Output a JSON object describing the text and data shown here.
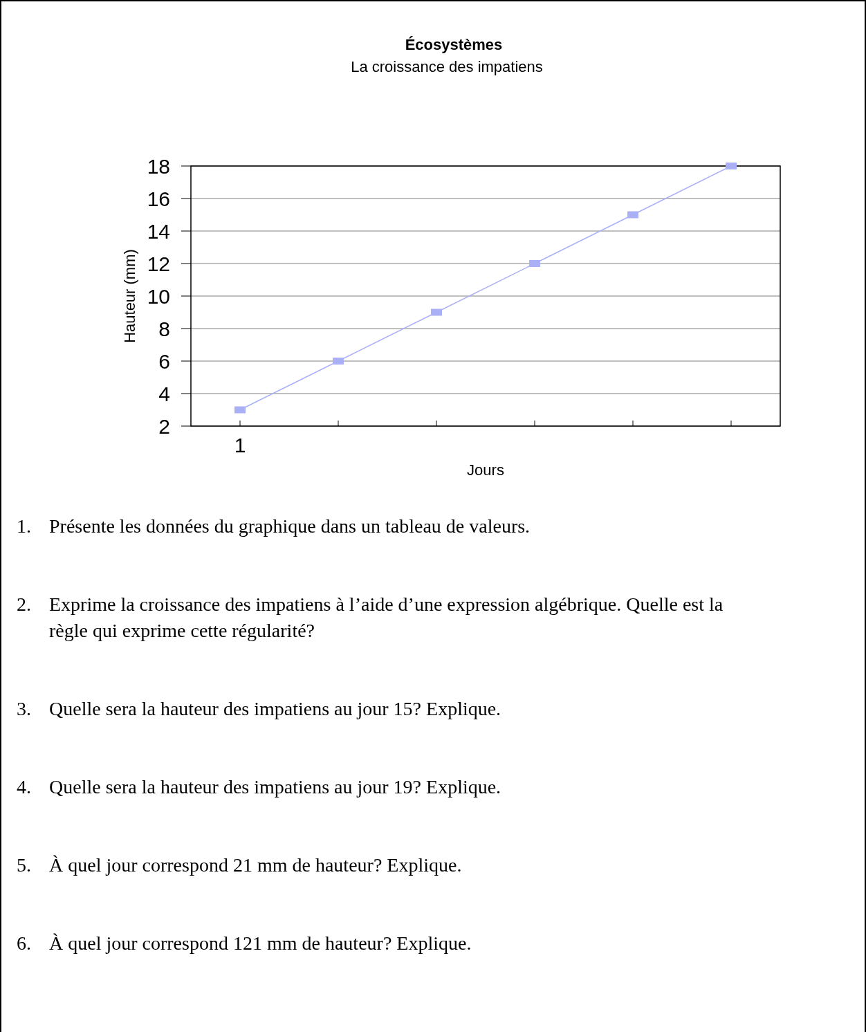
{
  "chart_data": {
    "type": "line",
    "title": "Écosystèmes",
    "subtitle": "La croissance des impatiens",
    "xlabel": "Jours",
    "ylabel": "Hauteur (mm)",
    "categories": [
      "1",
      null,
      null,
      null,
      null,
      null
    ],
    "series": [
      {
        "color": "#aab0f5",
        "values": [
          3,
          6,
          9,
          12,
          15,
          18
        ]
      }
    ],
    "ylim": [
      2,
      18
    ],
    "yticks": [
      2,
      4,
      6,
      8,
      10,
      12,
      14,
      16,
      18
    ],
    "grid": "y",
    "marker": "square",
    "line_style": "solid",
    "annotations": [
      "1. Présente les données du graphique dans un tableau de valeurs.",
      "2. Exprime la croissance des impatiens à l’aide d’une expression algébrique. Quelle est la règle qui exprime cette régularité?",
      "3. Quelle sera la hauteur des impatiens au jour 15? Explique.",
      "4. Quelle sera la hauteur des impatiens au jour 19? Explique.",
      "5. À quel jour correspond 21 mm de hauteur? Explique.",
      "6. À quel jour correspond 121 mm de hauteur? Explique."
    ]
  }
}
